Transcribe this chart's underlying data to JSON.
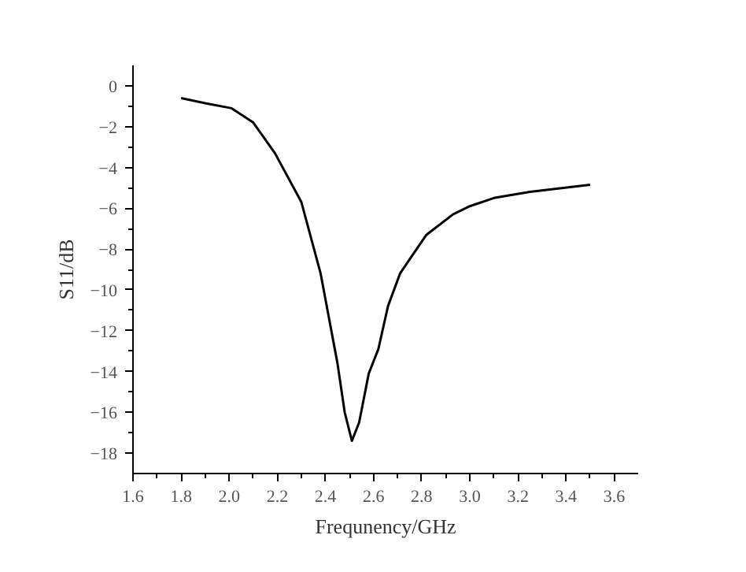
{
  "chart_data": {
    "type": "line",
    "xlabel": "Frequnency/GHz",
    "ylabel": "S11/dB",
    "x": [
      1.8,
      1.9,
      2.01,
      2.1,
      2.19,
      2.3,
      2.38,
      2.45,
      2.48,
      2.51,
      2.54,
      2.58,
      2.62,
      2.66,
      2.71,
      2.75,
      2.82,
      2.93,
      3.0,
      3.1,
      3.25,
      3.5
    ],
    "series": [
      {
        "color": "#000000",
        "values": [
          -0.6,
          -0.85,
          -1.1,
          -1.8,
          -3.3,
          -5.7,
          -9.2,
          -13.6,
          -16.0,
          -17.4,
          -16.5,
          -14.1,
          -12.9,
          -10.8,
          -9.2,
          -8.5,
          -7.3,
          -6.3,
          -5.9,
          -5.5,
          -5.2,
          -4.85
        ]
      }
    ],
    "xlim": [
      1.6,
      3.7
    ],
    "ylim": [
      -19,
      1
    ],
    "xticks": [
      {
        "value": 1.6,
        "label": "1.6"
      },
      {
        "value": 1.8,
        "label": "1.8"
      },
      {
        "value": 2.0,
        "label": "2.0"
      },
      {
        "value": 2.2,
        "label": "2.2"
      },
      {
        "value": 2.4,
        "label": "2.4"
      },
      {
        "value": 2.6,
        "label": "2.6"
      },
      {
        "value": 2.8,
        "label": "2.8"
      },
      {
        "value": 3.0,
        "label": "3.0"
      },
      {
        "value": 3.2,
        "label": "3.2"
      },
      {
        "value": 3.4,
        "label": "3.4"
      },
      {
        "value": 3.6,
        "label": "3.6"
      }
    ],
    "yticks": [
      0,
      -2,
      -4,
      -6,
      -8,
      -10,
      -12,
      -14,
      -16,
      -18
    ],
    "grid": false,
    "line_style": "solid",
    "marker": "none"
  }
}
